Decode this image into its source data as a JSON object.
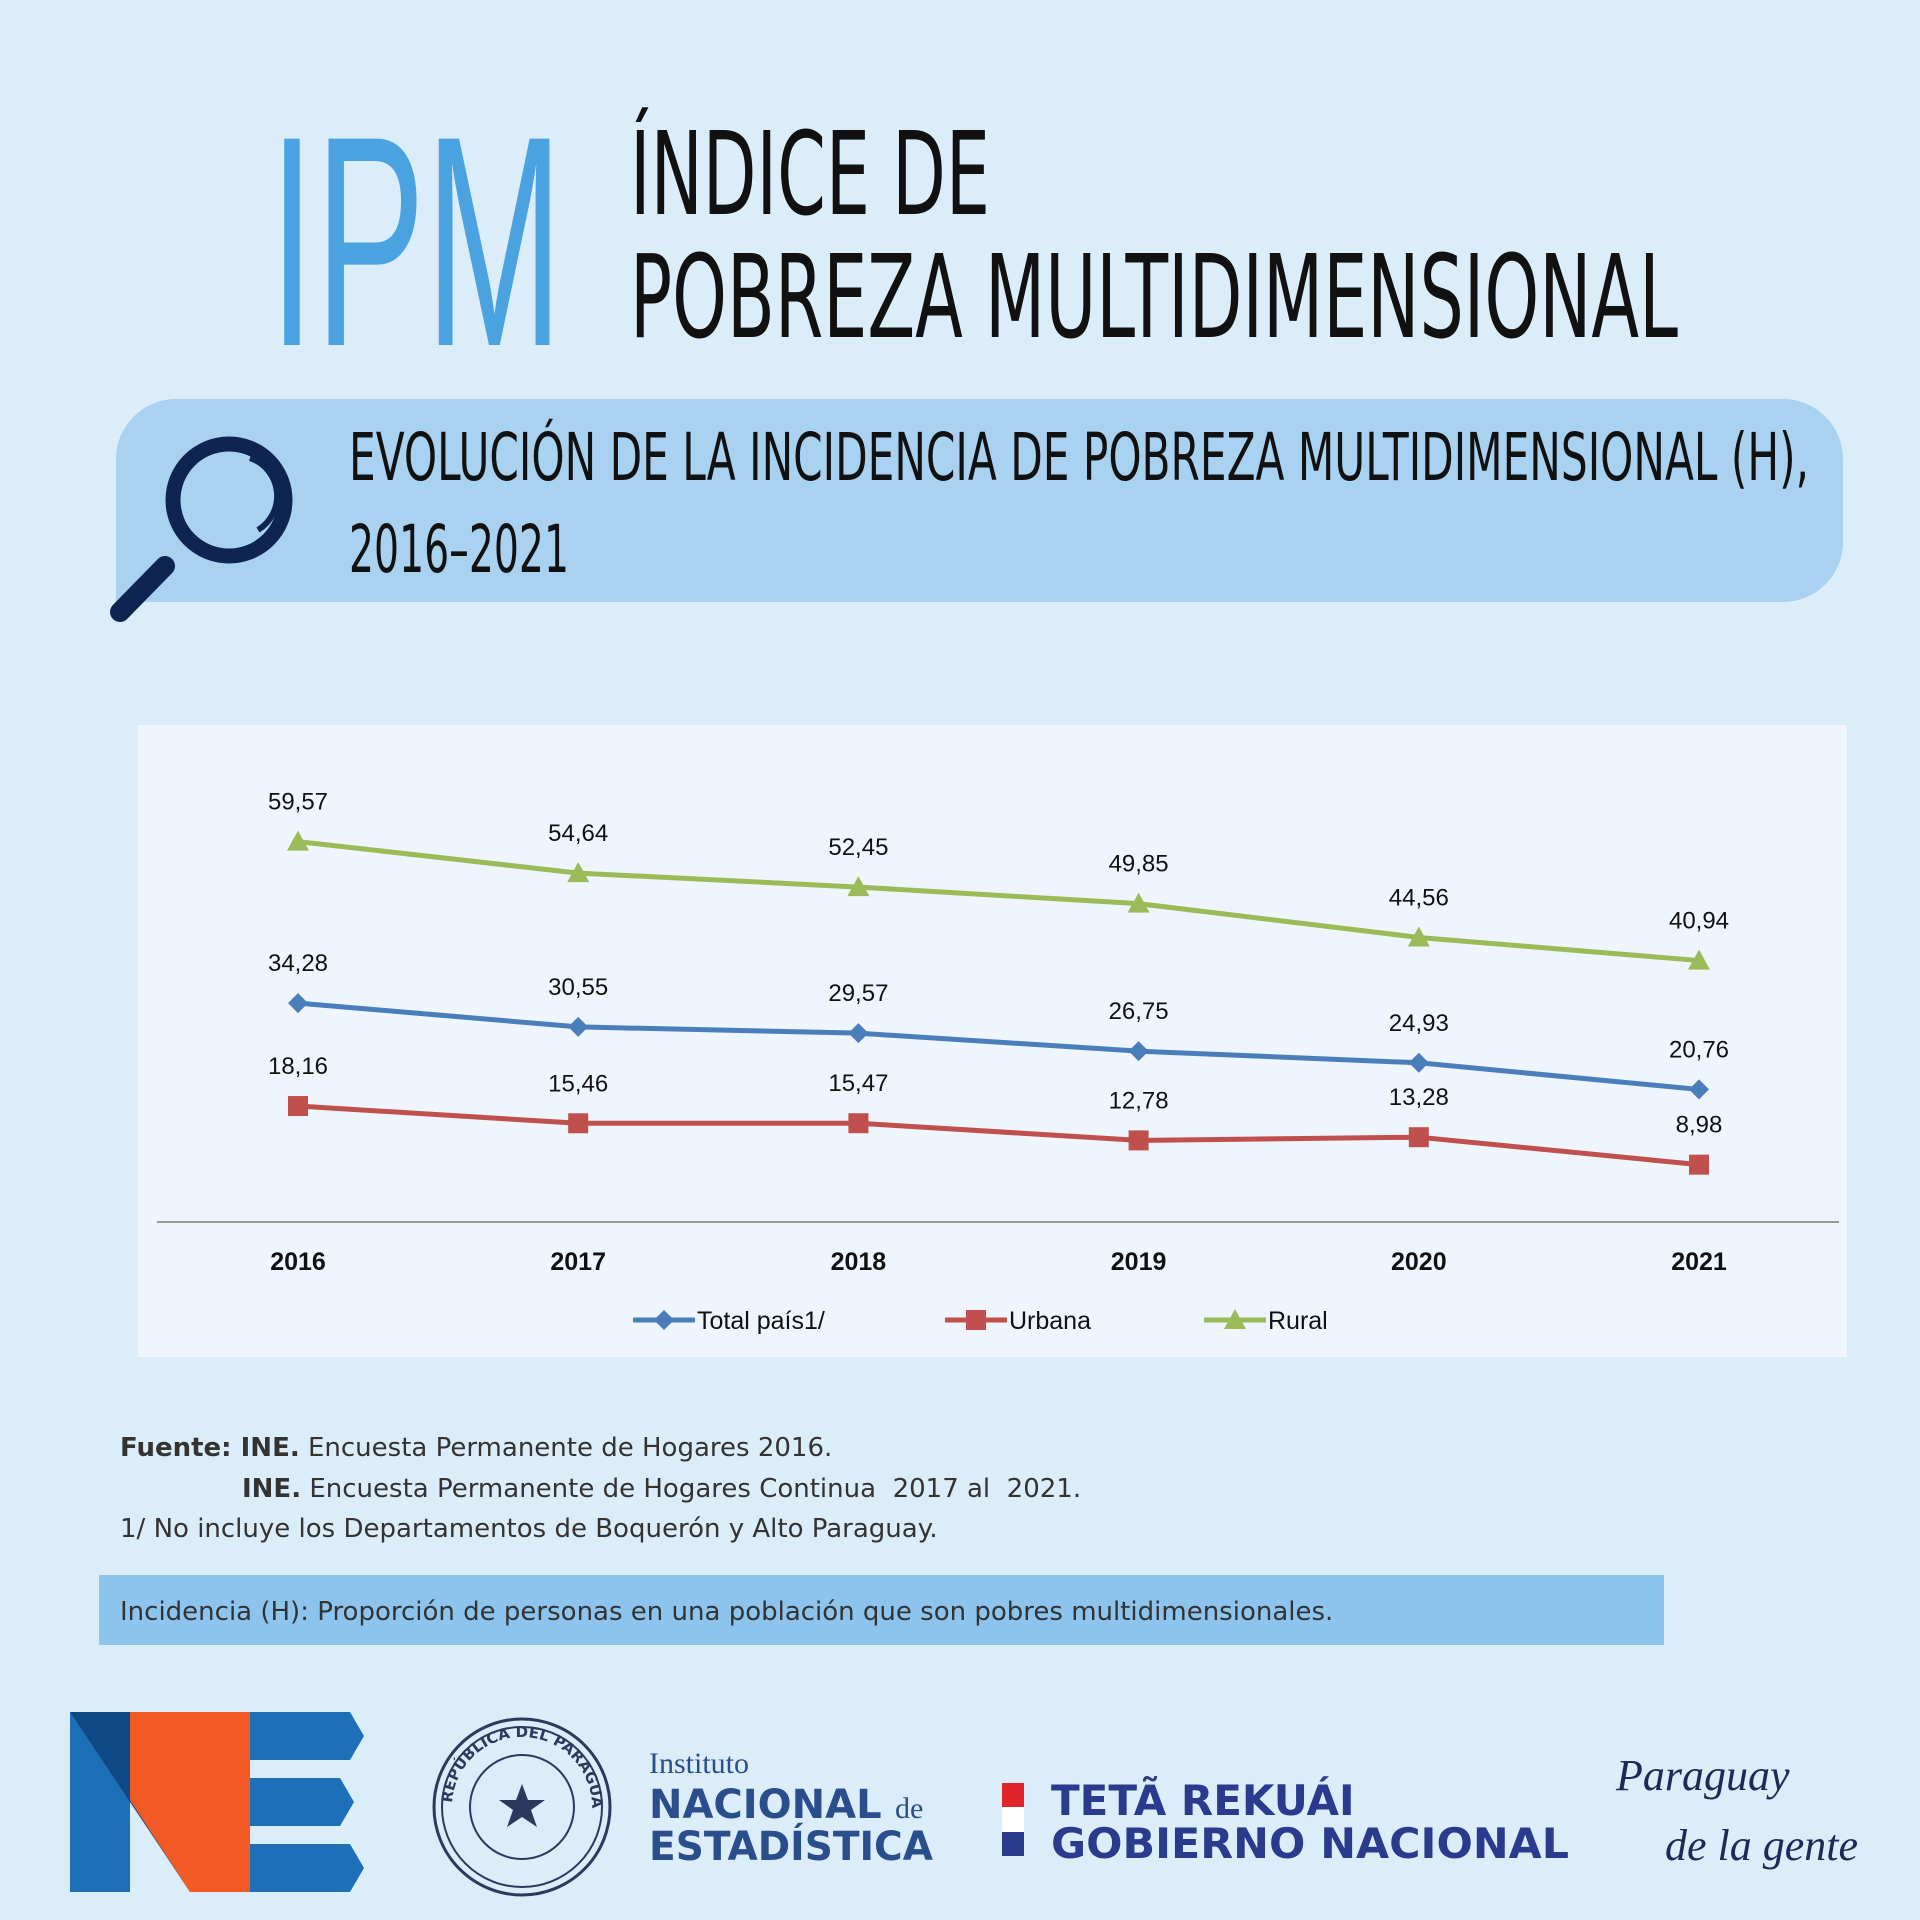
{
  "header": {
    "acronym": "IPM",
    "title_line1": "ÍNDICE DE",
    "title_line2": "POBREZA MULTIDIMENSIONAL"
  },
  "chart_data": {
    "type": "line",
    "title": "EVOLUCIÓN DE LA INCIDENCIA DE POBREZA MULTIDIMENSIONAL (H),",
    "subtitle": "2016–2021",
    "categories": [
      "2016",
      "2017",
      "2018",
      "2019",
      "2020",
      "2021"
    ],
    "ylim": [
      0,
      70
    ],
    "series": [
      {
        "name": "Total país1/",
        "color": "#4a7ebb",
        "marker": "diamond",
        "values": [
          34.28,
          30.55,
          29.57,
          26.75,
          24.93,
          20.76
        ],
        "value_labels": [
          "34,28",
          "30,55",
          "29,57",
          "26,75",
          "24,93",
          "20,76"
        ]
      },
      {
        "name": "Urbana",
        "color": "#c0504d",
        "marker": "square",
        "values": [
          18.16,
          15.46,
          15.47,
          12.78,
          13.28,
          8.98
        ],
        "value_labels": [
          "18,16",
          "15,46",
          "15,47",
          "12,78",
          "13,28",
          "8,98"
        ]
      },
      {
        "name": "Rural",
        "color": "#9bbb59",
        "marker": "triangle",
        "values": [
          59.57,
          54.64,
          52.45,
          49.85,
          44.56,
          40.94
        ],
        "value_labels": [
          "59,57",
          "54,64",
          "52,45",
          "49,85",
          "44,56",
          "40,94"
        ]
      }
    ]
  },
  "source": {
    "line1_label": "Fuente: INE.",
    "line1_text": " Encuesta Permanente de Hogares 2016.",
    "line2_label": "INE.",
    "line2_text": " Encuesta Permanente de Hogares Continua  2017 al  2021.",
    "note": "1/ No incluye los Departamentos de Boquerón y Alto Paraguay."
  },
  "definition": "Incidencia (H): Proporción de personas en una población que son pobres multidimensionales.",
  "logos": {
    "seal": "REPÚBLICA DEL PARAGUAY",
    "ine_line1": "Instituto",
    "ine_line2": "NACIONAL",
    "ine_de": "de",
    "ine_line3": "ESTADÍSTICA",
    "gov_line1": "TETÃ REKUÁI",
    "gov_line2": "GOBIERNO NACIONAL",
    "slogan_line1": "Paraguay",
    "slogan_line2": "de la gente"
  }
}
